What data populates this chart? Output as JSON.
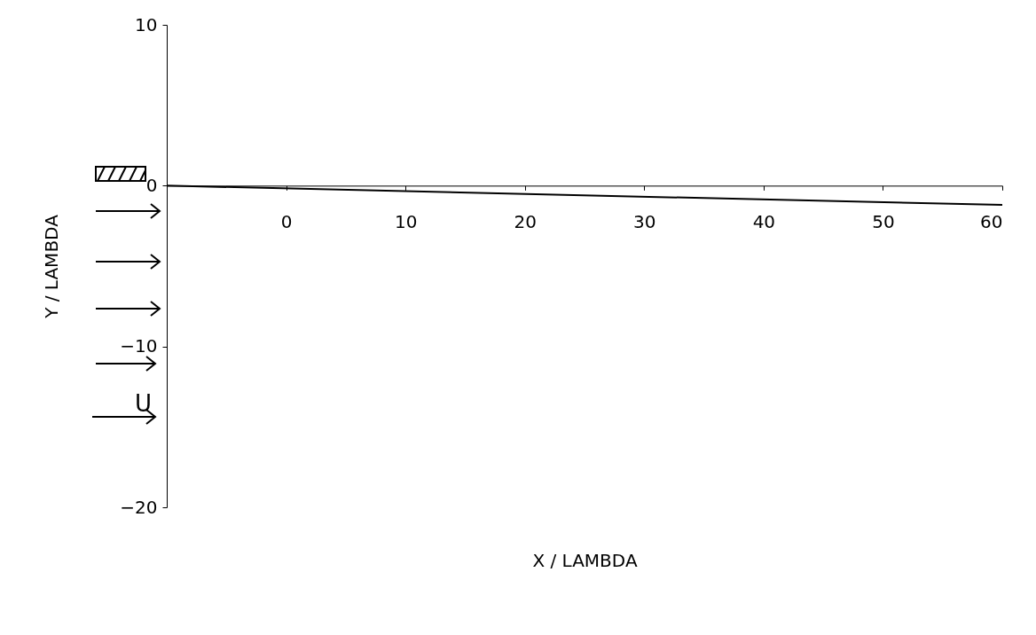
{
  "chart_data": {
    "type": "line",
    "xlabel": "X / LAMBDA",
    "ylabel": "Y / LAMBDA",
    "x": [
      -10,
      60
    ],
    "series": [
      {
        "color": "#000000",
        "values": [
          0,
          -1.2
        ]
      }
    ],
    "xlim": [
      -10,
      60
    ],
    "xticks": [
      0,
      10,
      20,
      30,
      40,
      50,
      60
    ],
    "ylim": [
      -20,
      10
    ],
    "yticks": [
      -20,
      -10,
      0,
      10
    ],
    "grid": false,
    "marker": "none",
    "line_style": "solid",
    "annotations": [
      "U"
    ]
  }
}
